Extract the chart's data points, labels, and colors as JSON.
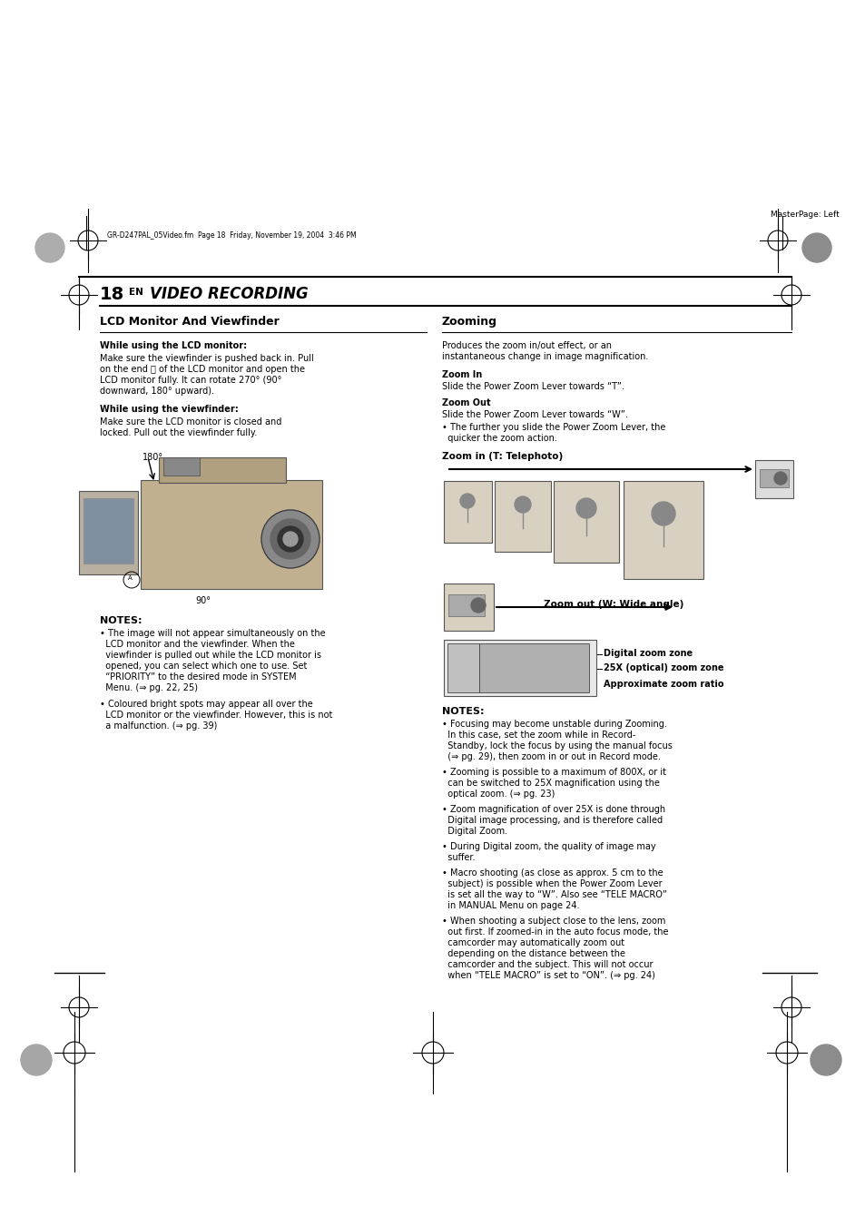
{
  "bg_color": "#ffffff",
  "page_width": 9.54,
  "page_height": 13.51,
  "dpi": 100,
  "header_text": "GR-D247PAL_05Video.fm  Page 18  Friday, November 19, 2004  3:46 PM",
  "masterpage_text": "MasterPage: Left",
  "page_number": "18",
  "page_label": "EN",
  "section_title": "VIDEO RECORDING",
  "left_section_title": "LCD Monitor And Viewfinder",
  "right_section_title": "Zooming",
  "lcd_bold1": "While using the LCD monitor:",
  "lcd_text1_lines": [
    "Make sure the viewfinder is pushed back in. Pull",
    "on the end ⑐ of the LCD monitor and open the",
    "LCD monitor fully. It can rotate 270° (90°",
    "downward, 180° upward)."
  ],
  "lcd_bold2": "While using the viewfinder:",
  "lcd_text2_lines": [
    "Make sure the LCD monitor is closed and",
    "locked. Pull out the viewfinder fully."
  ],
  "notes_title": "NOTES:",
  "note1_lines": [
    "• The image will not appear simultaneously on the",
    "  LCD monitor and the viewfinder. When the",
    "  viewfinder is pulled out while the LCD monitor is",
    "  opened, you can select which one to use. Set",
    "  “PRIORITY” to the desired mode in SYSTEM",
    "  Menu. (⇒ pg. 22, 25)"
  ],
  "note2_lines": [
    "• Coloured bright spots may appear all over the",
    "  LCD monitor or the viewfinder. However, this is not",
    "  a malfunction. (⇒ pg. 39)"
  ],
  "zoom_intro_lines": [
    "Produces the zoom in/out effect, or an",
    "instantaneous change in image magnification."
  ],
  "zoom_in_title": "Zoom In",
  "zoom_in_text": "Slide the Power Zoom Lever towards “T”.",
  "zoom_out_title": "Zoom Out",
  "zoom_out_text": "Slide the Power Zoom Lever towards “W”.",
  "zoom_bullet_lines": [
    "• The further you slide the Power Zoom Lever, the",
    "  quicker the zoom action."
  ],
  "zoom_tele_label": "Zoom in (T: Telephoto)",
  "zoom_wide_label": "Zoom out (W: Wide angle)",
  "zoom_digital_label": "Digital zoom zone",
  "zoom_optical_label": "25X (optical) zoom zone",
  "zoom_approx_label": "Approximate zoom ratio",
  "zoom_notes_title": "NOTES:",
  "zoom_note1_lines": [
    "• Focusing may become unstable during Zooming.",
    "  In this case, set the zoom while in Record-",
    "  Standby, lock the focus by using the manual focus",
    "  (⇒ pg. 29), then zoom in or out in Record mode."
  ],
  "zoom_note2_lines": [
    "• Zooming is possible to a maximum of 800X, or it",
    "  can be switched to 25X magnification using the",
    "  optical zoom. (⇒ pg. 23)"
  ],
  "zoom_note3_lines": [
    "• Zoom magnification of over 25X is done through",
    "  Digital image processing, and is therefore called",
    "  Digital Zoom."
  ],
  "zoom_note4_lines": [
    "• During Digital zoom, the quality of image may",
    "  suffer."
  ],
  "zoom_note5_lines": [
    "• Macro shooting (as close as approx. 5 cm to the",
    "  subject) is possible when the Power Zoom Lever",
    "  is set all the way to “W”. Also see “TELE MACRO”",
    "  in MANUAL Menu on page 24."
  ],
  "zoom_note6_lines": [
    "• When shooting a subject close to the lens, zoom",
    "  out first. If zoomed-in in the auto focus mode, the",
    "  camcorder may automatically zoom out",
    "  depending on the distance between the",
    "  camcorder and the subject. This will not occur",
    "  when “TELE MACRO” is set to “ON”. (⇒ pg. 24)"
  ]
}
